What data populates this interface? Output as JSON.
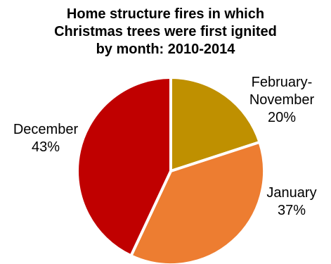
{
  "chart_data": {
    "type": "pie",
    "title_lines": [
      "Home structure fires in which",
      "Christmas trees were first ignited",
      "by month: 2010-2014"
    ],
    "slices": [
      {
        "label_lines": [
          "February-",
          "November"
        ],
        "value": 20,
        "value_label": "20%",
        "color": "#BF9000"
      },
      {
        "label_lines": [
          "January"
        ],
        "value": 37,
        "value_label": "37%",
        "color": "#ED7D31"
      },
      {
        "label_lines": [
          "December"
        ],
        "value": 43,
        "value_label": "43%",
        "color": "#C00000"
      }
    ]
  }
}
